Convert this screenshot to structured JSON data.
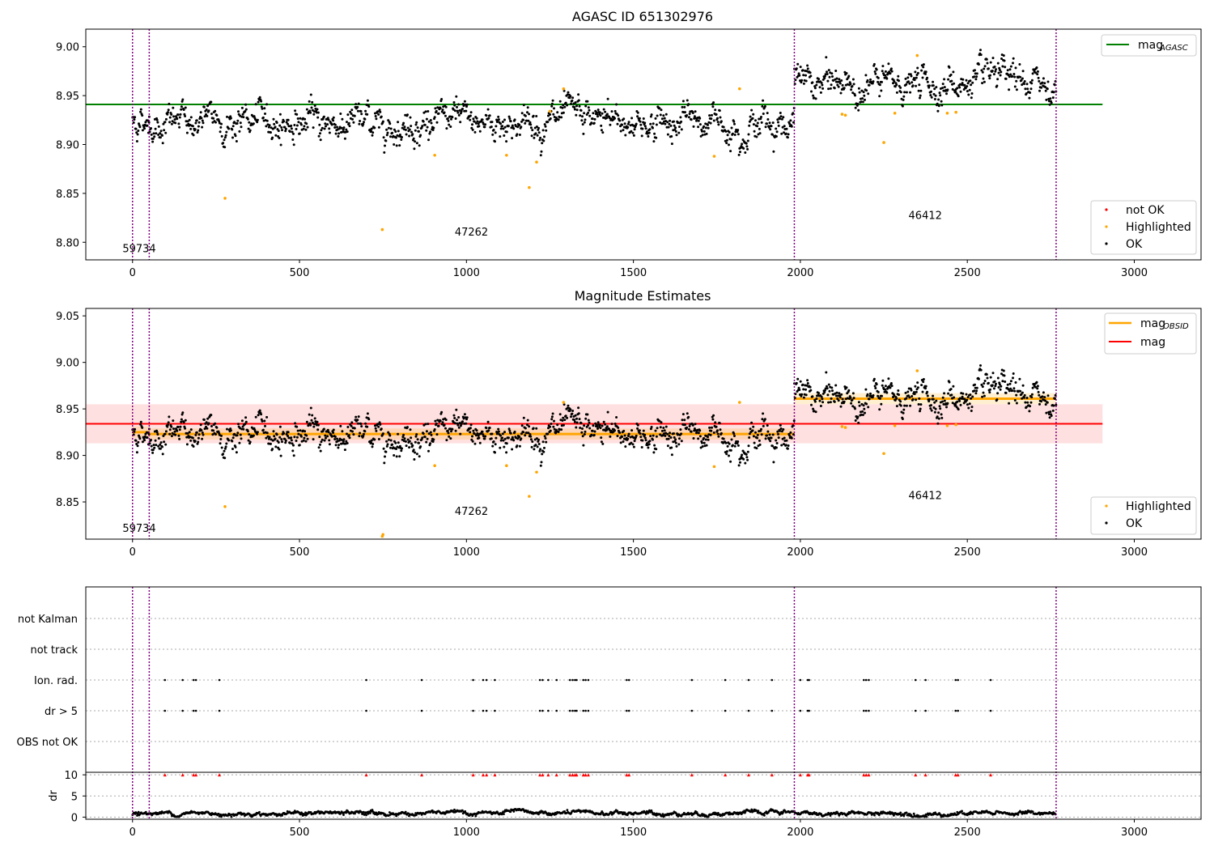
{
  "chart_data": [
    {
      "type": "scatter",
      "title": "AGASC ID 651302976",
      "xlim": [
        -140,
        3200
      ],
      "ylim": [
        8.782,
        9.018
      ],
      "xticks": [
        0,
        500,
        1000,
        1500,
        2000,
        2500,
        3000
      ],
      "yticks": [
        8.8,
        8.85,
        8.9,
        8.95,
        9.0
      ],
      "grid": false,
      "observation_boundaries": [
        0,
        50,
        1982,
        2766
      ],
      "observation_labels": [
        {
          "x": 20,
          "y": 8.79,
          "text": "59734"
        },
        {
          "x": 1015,
          "y": 8.807,
          "text": "47262"
        },
        {
          "x": 2374,
          "y": 8.824,
          "text": "46412"
        }
      ],
      "reference_lines": [
        {
          "name": "mag_AGASC",
          "label": "mag",
          "subscript": "AGASC",
          "y": 8.941,
          "x_range": [
            -140,
            2905
          ],
          "color": "#008000"
        }
      ],
      "segments": [
        {
          "x_range": [
            0,
            50
          ],
          "center": 8.925,
          "spread": 0.007
        },
        {
          "x_range": [
            50,
            1982
          ],
          "center": 8.923,
          "spread": 0.008
        },
        {
          "x_range": [
            1982,
            2766
          ],
          "center": 8.961,
          "spread": 0.008
        }
      ],
      "highlighted_points": [
        {
          "x": 277,
          "y": 8.845
        },
        {
          "x": 748,
          "y": 8.813
        },
        {
          "x": 905,
          "y": 8.889
        },
        {
          "x": 1120,
          "y": 8.889
        },
        {
          "x": 1188,
          "y": 8.856
        },
        {
          "x": 1210,
          "y": 8.882
        },
        {
          "x": 1250,
          "y": 8.934
        },
        {
          "x": 1291,
          "y": 8.957
        },
        {
          "x": 1742,
          "y": 8.888
        },
        {
          "x": 1818,
          "y": 8.957
        },
        {
          "x": 2125,
          "y": 8.931
        },
        {
          "x": 2135,
          "y": 8.93
        },
        {
          "x": 2250,
          "y": 8.902
        },
        {
          "x": 2283,
          "y": 8.932
        },
        {
          "x": 2350,
          "y": 8.991
        },
        {
          "x": 2440,
          "y": 8.932
        },
        {
          "x": 2466,
          "y": 8.933
        }
      ],
      "legend": {
        "placement": "top-right",
        "items": [
          {
            "name": "mag",
            "subscript": "AGASC",
            "color": "#008000"
          }
        ]
      },
      "legend2": {
        "placement": "lower-right",
        "items": [
          {
            "name": "not OK",
            "color": "#ff0000"
          },
          {
            "name": "Highlighted",
            "color": "#ffa500"
          },
          {
            "name": "OK",
            "color": "#000000"
          }
        ]
      }
    },
    {
      "type": "scatter",
      "title": "Magnitude Estimates",
      "xlim": [
        -140,
        3200
      ],
      "ylim": [
        8.81,
        9.058
      ],
      "xticks": [
        0,
        500,
        1000,
        1500,
        2000,
        2500,
        3000
      ],
      "yticks": [
        8.85,
        8.9,
        8.95,
        9.0,
        9.05
      ],
      "grid": false,
      "observation_boundaries": [
        0,
        50,
        1982,
        2766
      ],
      "observation_labels": [
        {
          "x": 20,
          "y": 8.818,
          "text": "59734"
        },
        {
          "x": 1015,
          "y": 8.836,
          "text": "47262"
        },
        {
          "x": 2374,
          "y": 8.853,
          "text": "46412"
        }
      ],
      "reference_lines": [
        {
          "name": "mag",
          "y": 8.934,
          "x_range": [
            -140,
            2905
          ],
          "band": [
            8.913,
            8.955
          ],
          "color": "#ff0000"
        }
      ],
      "obsid_lines": [
        {
          "x_range": [
            0,
            50
          ],
          "y": 8.925
        },
        {
          "x_range": [
            50,
            1982
          ],
          "y": 8.923
        },
        {
          "x_range": [
            1982,
            2766
          ],
          "y": 8.961
        }
      ],
      "highlighted_points": [
        {
          "x": 277,
          "y": 8.845
        },
        {
          "x": 748,
          "y": 8.813
        },
        {
          "x": 750,
          "y": 8.815
        },
        {
          "x": 905,
          "y": 8.889
        },
        {
          "x": 1120,
          "y": 8.889
        },
        {
          "x": 1188,
          "y": 8.856
        },
        {
          "x": 1210,
          "y": 8.882
        },
        {
          "x": 1291,
          "y": 8.957
        },
        {
          "x": 1742,
          "y": 8.888
        },
        {
          "x": 1818,
          "y": 8.957
        },
        {
          "x": 2125,
          "y": 8.931
        },
        {
          "x": 2135,
          "y": 8.93
        },
        {
          "x": 2250,
          "y": 8.902
        },
        {
          "x": 2283,
          "y": 8.932
        },
        {
          "x": 2350,
          "y": 8.991
        },
        {
          "x": 2440,
          "y": 8.932
        },
        {
          "x": 2466,
          "y": 8.933
        }
      ],
      "legend": {
        "placement": "top-right",
        "items": [
          {
            "name": "mag",
            "subscript": "OBSID",
            "color": "#ffa500"
          },
          {
            "name": "mag",
            "subscript": "",
            "color": "#ff0000"
          }
        ]
      },
      "legend2": {
        "placement": "lower-right",
        "items": [
          {
            "name": "Highlighted",
            "color": "#ffa500"
          },
          {
            "name": "OK",
            "color": "#000000"
          }
        ]
      }
    },
    {
      "type": "scatter",
      "title": "",
      "xlim": [
        -140,
        3200
      ],
      "xticks": [
        0,
        500,
        1000,
        1500,
        2000,
        2500,
        3000
      ],
      "grid": true,
      "observation_boundaries": [
        0,
        50,
        1982,
        2766
      ],
      "flag_categories": [
        "not Kalman",
        "not track",
        "Ion. rad.",
        "dr > 5",
        "OBS not OK"
      ],
      "flag_samples": [
        {
          "category": "Ion. rad.",
          "x": [
            97,
            150,
            183,
            190,
            260,
            700,
            866,
            1020,
            1050,
            1060,
            1085,
            1220,
            1228,
            1245,
            1270,
            1310,
            1318,
            1325,
            1330,
            1350,
            1357,
            1365,
            1480,
            1487,
            1675,
            1775,
            1845,
            1915,
            2000,
            2022,
            2026,
            2190,
            2197,
            2205,
            2345,
            2375,
            2465,
            2472,
            2570
          ]
        },
        {
          "category": "dr > 5",
          "x": [
            97,
            150,
            183,
            190,
            260,
            700,
            866,
            1020,
            1050,
            1060,
            1085,
            1220,
            1228,
            1245,
            1270,
            1310,
            1318,
            1325,
            1330,
            1350,
            1357,
            1365,
            1480,
            1487,
            1675,
            1775,
            1845,
            1915,
            2000,
            2022,
            2026,
            2190,
            2197,
            2205,
            2345,
            2375,
            2465,
            2472,
            2570
          ]
        }
      ],
      "dr_panel": {
        "ylabel": "dr",
        "ylim": [
          -0.5,
          10.6
        ],
        "yticks": [
          0,
          5,
          10
        ],
        "dr_clipped_marker": {
          "y": 10,
          "color": "#ff0000"
        },
        "baseline_mean": 0.9
      }
    }
  ]
}
